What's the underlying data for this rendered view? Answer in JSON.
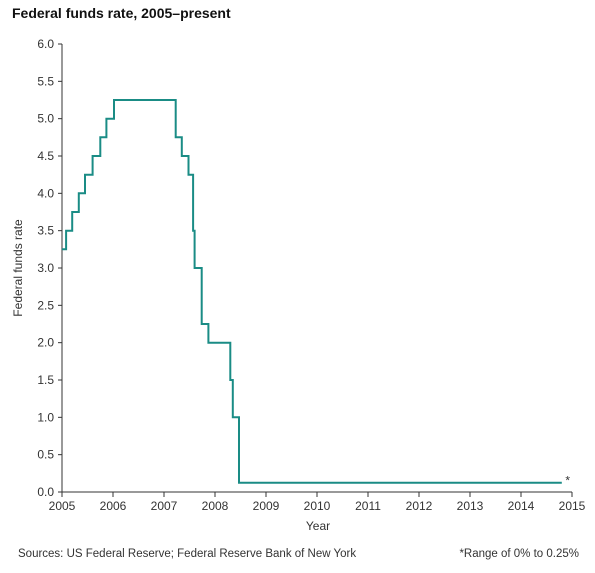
{
  "chart_data": {
    "type": "line",
    "title": "Federal funds rate, 2005–present",
    "xlabel": "Year",
    "ylabel": "Federal funds rate",
    "xlim": [
      2005,
      2015
    ],
    "ylim": [
      0,
      6
    ],
    "x_ticks": [
      "2005",
      "2006",
      "2007",
      "2008",
      "2009",
      "2010",
      "2011",
      "2012",
      "2013",
      "2014",
      "2015"
    ],
    "y_ticks": [
      "0.0",
      "0.5",
      "1.0",
      "1.5",
      "2.0",
      "2.5",
      "3.0",
      "3.5",
      "4.0",
      "4.5",
      "5.0",
      "5.5",
      "6.0"
    ],
    "grid": false,
    "series": [
      {
        "step": "post",
        "color": "#1a8c85",
        "points": [
          [
            2005.0,
            3.25
          ],
          [
            2005.08,
            3.5
          ],
          [
            2005.2,
            3.75
          ],
          [
            2005.33,
            4.0
          ],
          [
            2005.45,
            4.25
          ],
          [
            2005.6,
            4.5
          ],
          [
            2005.75,
            4.75
          ],
          [
            2005.87,
            5.0
          ],
          [
            2006.02,
            5.25
          ],
          [
            2007.23,
            4.75
          ],
          [
            2007.35,
            4.5
          ],
          [
            2007.48,
            4.25
          ],
          [
            2007.57,
            3.5
          ],
          [
            2007.6,
            3.0
          ],
          [
            2007.74,
            2.25
          ],
          [
            2007.87,
            2.0
          ],
          [
            2008.3,
            1.5
          ],
          [
            2008.35,
            1.0
          ],
          [
            2008.47,
            0.125
          ],
          [
            2014.8,
            0.125
          ]
        ]
      }
    ],
    "annotations": [
      {
        "text": "*",
        "x": 2014.87,
        "y": 0.125
      }
    ]
  },
  "footer": {
    "source": "Sources: US Federal Reserve; Federal Reserve Bank of New York",
    "note": "*Range of 0% to 0.25%"
  }
}
